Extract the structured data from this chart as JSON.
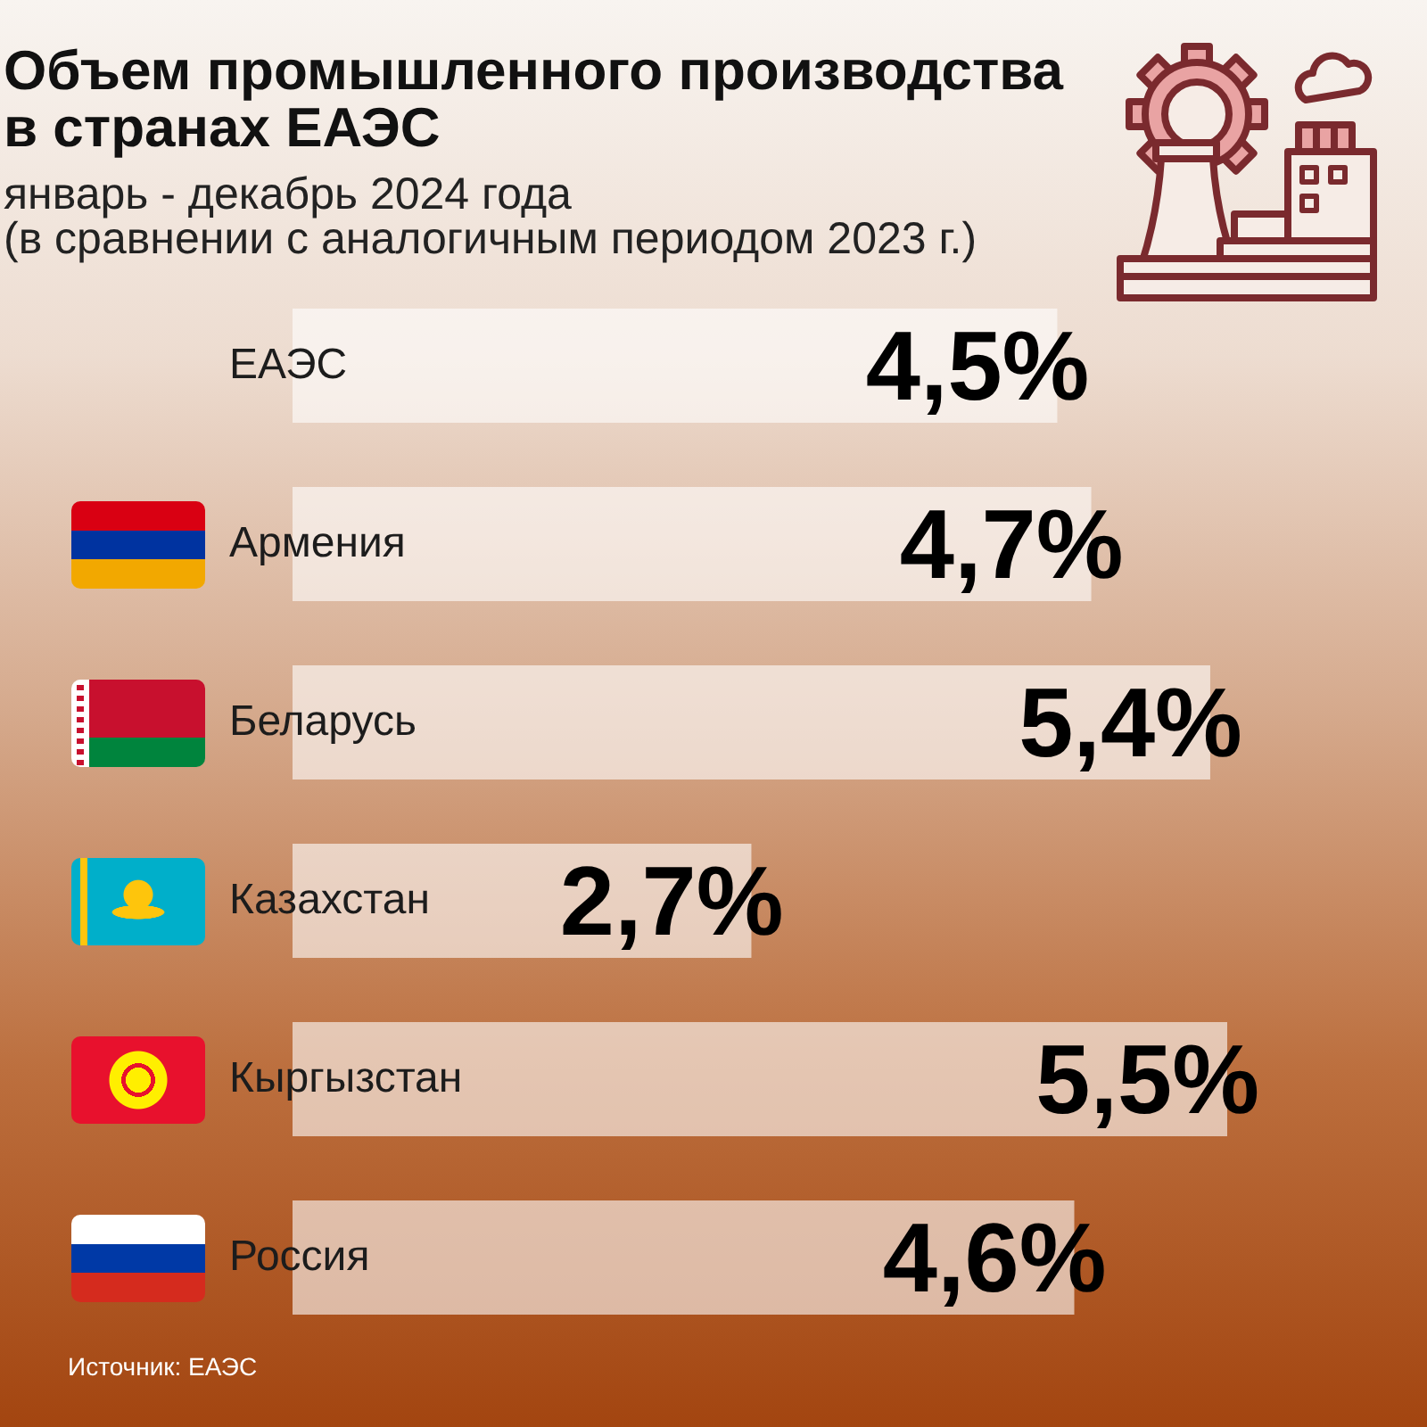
{
  "chart_data": {
    "type": "bar",
    "orientation": "horizontal",
    "title": "Объем промышленного производства\nв странах ЕАЭС",
    "subtitle": "январь - декабрь 2024 года\n(в сравнении с аналогичным периодом 2023 г.)",
    "categories": [
      "ЕАЭС",
      "Армения",
      "Беларусь",
      "Казахстан",
      "Кыргызстан",
      "Россия"
    ],
    "values": [
      4.5,
      4.7,
      5.4,
      2.7,
      5.5,
      4.6
    ],
    "value_labels": [
      "4,5%",
      "4,7%",
      "5,4%",
      "2,7%",
      "5,5%",
      "4,6%"
    ],
    "color": "#ffffff",
    "tick_labels": "y",
    "annotations": [
      "Источник: ЕАЭС"
    ]
  }
}
